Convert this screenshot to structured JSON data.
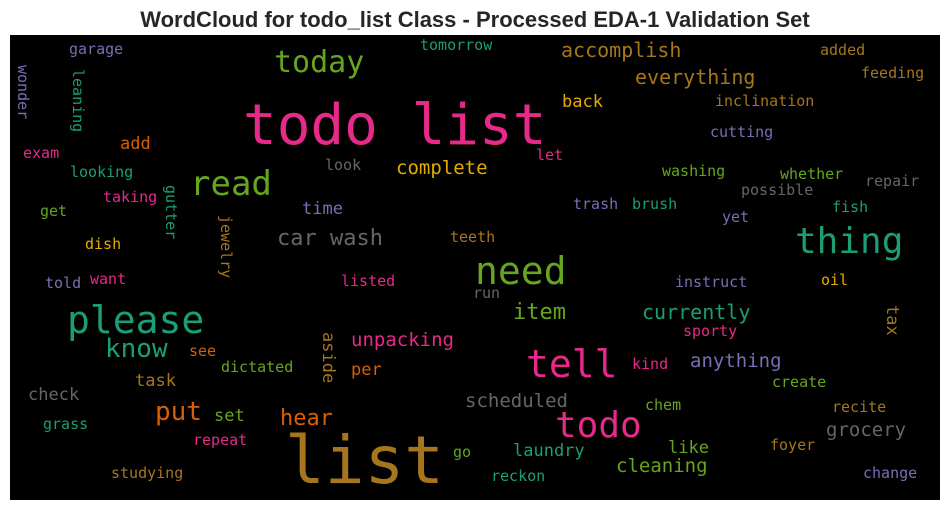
{
  "chart_data": {
    "type": "wordcloud",
    "title": "WordCloud for todo_list Class - Processed EDA-1 Validation Set",
    "palette": [
      "#e7298a",
      "#66a61e",
      "#1b9e77",
      "#d95f02",
      "#7570b3",
      "#e6ab02",
      "#a6761d",
      "#666666"
    ],
    "words": [
      {
        "text": "todo list",
        "color": "#e7298a"
      },
      {
        "text": "list",
        "color": "#a6761d"
      },
      {
        "text": "please",
        "color": "#1b9e77"
      },
      {
        "text": "need",
        "color": "#66a61e"
      },
      {
        "text": "tell",
        "color": "#e7298a"
      },
      {
        "text": "todo",
        "color": "#e7298a"
      },
      {
        "text": "thing",
        "color": "#1b9e77"
      },
      {
        "text": "read",
        "color": "#66a61e"
      },
      {
        "text": "today",
        "color": "#66a61e"
      },
      {
        "text": "know",
        "color": "#1b9e77"
      },
      {
        "text": "put",
        "color": "#d95f02"
      },
      {
        "text": "car wash",
        "color": "#666666"
      },
      {
        "text": "item",
        "color": "#66a61e"
      },
      {
        "text": "hear",
        "color": "#d95f02"
      },
      {
        "text": "accomplish",
        "color": "#a6761d"
      },
      {
        "text": "everything",
        "color": "#a6761d"
      },
      {
        "text": "currently",
        "color": "#1b9e77"
      },
      {
        "text": "complete",
        "color": "#e6ab02"
      },
      {
        "text": "unpacking",
        "color": "#e7298a"
      },
      {
        "text": "anything",
        "color": "#7570b3"
      },
      {
        "text": "scheduled",
        "color": "#666666"
      },
      {
        "text": "grocery",
        "color": "#666666"
      },
      {
        "text": "cleaning",
        "color": "#66a61e"
      },
      {
        "text": "laundry",
        "color": "#1b9e77"
      },
      {
        "text": "back",
        "color": "#e6ab02"
      },
      {
        "text": "time",
        "color": "#7570b3"
      },
      {
        "text": "check",
        "color": "#666666"
      },
      {
        "text": "task",
        "color": "#a6761d"
      },
      {
        "text": "add",
        "color": "#d95f02"
      },
      {
        "text": "like",
        "color": "#66a61e"
      },
      {
        "text": "set",
        "color": "#66a61e"
      },
      {
        "text": "per",
        "color": "#d95f02"
      },
      {
        "text": "tax",
        "color": "#a6761d"
      },
      {
        "text": "aside",
        "color": "#a6761d"
      },
      {
        "text": "garage",
        "color": "#7570b3"
      },
      {
        "text": "tomorrow",
        "color": "#1b9e77"
      },
      {
        "text": "added",
        "color": "#a6761d"
      },
      {
        "text": "feeding",
        "color": "#a6761d"
      },
      {
        "text": "wonder",
        "color": "#7570b3"
      },
      {
        "text": "leaning",
        "color": "#1b9e77"
      },
      {
        "text": "inclination",
        "color": "#a6761d"
      },
      {
        "text": "cutting",
        "color": "#7570b3"
      },
      {
        "text": "exam",
        "color": "#e7298a"
      },
      {
        "text": "look",
        "color": "#666666"
      },
      {
        "text": "let",
        "color": "#e7298a"
      },
      {
        "text": "washing",
        "color": "#66a61e"
      },
      {
        "text": "whether",
        "color": "#66a61e"
      },
      {
        "text": "looking",
        "color": "#1b9e77"
      },
      {
        "text": "repair",
        "color": "#666666"
      },
      {
        "text": "possible",
        "color": "#666666"
      },
      {
        "text": "taking",
        "color": "#e7298a"
      },
      {
        "text": "gutter",
        "color": "#1b9e77"
      },
      {
        "text": "trash",
        "color": "#7570b3"
      },
      {
        "text": "brush",
        "color": "#1b9e77"
      },
      {
        "text": "get",
        "color": "#66a61e"
      },
      {
        "text": "fish",
        "color": "#1b9e77"
      },
      {
        "text": "yet",
        "color": "#7570b3"
      },
      {
        "text": "jewelry",
        "color": "#a6761d"
      },
      {
        "text": "dish",
        "color": "#e6ab02"
      },
      {
        "text": "teeth",
        "color": "#a6761d"
      },
      {
        "text": "want",
        "color": "#e7298a"
      },
      {
        "text": "told",
        "color": "#7570b3"
      },
      {
        "text": "listed",
        "color": "#e7298a"
      },
      {
        "text": "instruct",
        "color": "#7570b3"
      },
      {
        "text": "run",
        "color": "#666666"
      },
      {
        "text": "oil",
        "color": "#e6ab02"
      },
      {
        "text": "sporty",
        "color": "#e7298a"
      },
      {
        "text": "see",
        "color": "#d95f02"
      },
      {
        "text": "dictated",
        "color": "#66a61e"
      },
      {
        "text": "kind",
        "color": "#e7298a"
      },
      {
        "text": "create",
        "color": "#66a61e"
      },
      {
        "text": "chem",
        "color": "#66a61e"
      },
      {
        "text": "recite",
        "color": "#a6761d"
      },
      {
        "text": "grass",
        "color": "#1b9e77"
      },
      {
        "text": "repeat",
        "color": "#e7298a"
      },
      {
        "text": "go",
        "color": "#66a61e"
      },
      {
        "text": "foyer",
        "color": "#a6761d"
      },
      {
        "text": "studying",
        "color": "#a6761d"
      },
      {
        "text": "reckon",
        "color": "#1b9e77"
      },
      {
        "text": "change",
        "color": "#7570b3"
      }
    ]
  }
}
